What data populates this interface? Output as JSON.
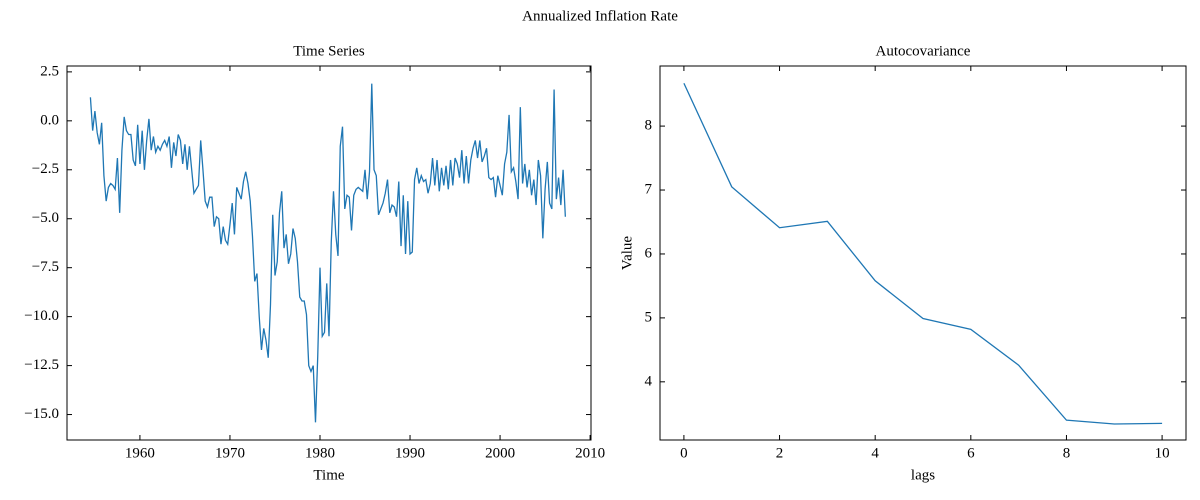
{
  "title": "Annualized Inflation Rate",
  "chart_data": [
    {
      "type": "line",
      "title": "Time Series",
      "xlabel": "Time",
      "color": "#1f77b4",
      "x": [
        1954.5,
        1954.75,
        1955,
        1955.25,
        1955.5,
        1955.75,
        1956,
        1956.25,
        1956.5,
        1956.75,
        1957,
        1957.25,
        1957.5,
        1957.75,
        1958,
        1958.25,
        1958.5,
        1958.75,
        1959,
        1959.25,
        1959.5,
        1959.75,
        1960,
        1960.25,
        1960.5,
        1960.75,
        1961,
        1961.25,
        1961.5,
        1961.75,
        1962,
        1962.25,
        1962.5,
        1962.75,
        1963,
        1963.25,
        1963.5,
        1963.75,
        1964,
        1964.25,
        1964.5,
        1964.75,
        1965,
        1965.25,
        1965.5,
        1965.75,
        1966,
        1966.25,
        1966.5,
        1966.75,
        1967,
        1967.25,
        1967.5,
        1967.75,
        1968,
        1968.25,
        1968.5,
        1968.75,
        1969,
        1969.25,
        1969.5,
        1969.75,
        1970,
        1970.25,
        1970.5,
        1970.75,
        1971,
        1971.25,
        1971.5,
        1971.75,
        1972,
        1972.25,
        1972.5,
        1972.75,
        1973,
        1973.25,
        1973.5,
        1973.75,
        1974,
        1974.25,
        1974.5,
        1974.75,
        1975,
        1975.25,
        1975.5,
        1975.75,
        1976,
        1976.25,
        1976.5,
        1976.75,
        1977,
        1977.25,
        1977.5,
        1977.75,
        1978,
        1978.25,
        1978.5,
        1978.75,
        1979,
        1979.25,
        1979.5,
        1979.75,
        1980,
        1980.25,
        1980.5,
        1980.75,
        1981,
        1981.25,
        1981.5,
        1981.75,
        1982,
        1982.25,
        1982.5,
        1982.75,
        1983,
        1983.25,
        1983.5,
        1983.75,
        1984,
        1984.25,
        1984.5,
        1984.75,
        1985,
        1985.25,
        1985.5,
        1985.75,
        1986,
        1986.25,
        1986.5,
        1986.75,
        1987,
        1987.25,
        1987.5,
        1987.75,
        1988,
        1988.25,
        1988.5,
        1988.75,
        1989,
        1989.25,
        1989.5,
        1989.75,
        1990,
        1990.25,
        1990.5,
        1990.75,
        1991,
        1991.25,
        1991.5,
        1991.75,
        1992,
        1992.25,
        1992.5,
        1992.75,
        1993,
        1993.25,
        1993.5,
        1993.75,
        1994,
        1994.25,
        1994.5,
        1994.75,
        1995,
        1995.25,
        1995.5,
        1995.75,
        1996,
        1996.25,
        1996.5,
        1996.75,
        1997,
        1997.25,
        1997.5,
        1997.75,
        1998,
        1998.25,
        1998.5,
        1998.75,
        1999,
        1999.25,
        1999.5,
        1999.75,
        2000,
        2000.25,
        2000.5,
        2000.75,
        2001,
        2001.25,
        2001.5,
        2001.75,
        2002,
        2002.25,
        2002.5,
        2002.75,
        2003,
        2003.25,
        2003.5,
        2003.75,
        2004,
        2004.25,
        2004.5,
        2004.75,
        2005,
        2005.25,
        2005.5,
        2005.75,
        2006,
        2006.25,
        2006.5,
        2006.75,
        2007,
        2007.25
      ],
      "values": [
        1.2,
        -0.5,
        0.5,
        -0.6,
        -1.2,
        -0.1,
        -2.8,
        -4.1,
        -3.4,
        -3.2,
        -3.3,
        -3.5,
        -1.9,
        -4.7,
        -1.5,
        0.2,
        -0.5,
        -0.7,
        -0.7,
        -2.0,
        -2.3,
        -0.2,
        -2.2,
        -0.5,
        -2.5,
        -1.0,
        0.1,
        -1.5,
        -0.8,
        -1.6,
        -1.3,
        -1.5,
        -1.2,
        -1.0,
        -1.3,
        -0.8,
        -2.4,
        -1.1,
        -1.8,
        -0.7,
        -1.0,
        -2.2,
        -1.2,
        -2.5,
        -1.3,
        -2.5,
        -3.7,
        -3.5,
        -3.3,
        -1.0,
        -2.5,
        -4.1,
        -4.4,
        -3.9,
        -3.9,
        -5.4,
        -4.9,
        -5.0,
        -6.3,
        -5.4,
        -6.1,
        -6.3,
        -5.3,
        -4.2,
        -5.8,
        -3.4,
        -3.7,
        -4.0,
        -3.1,
        -2.6,
        -3.2,
        -4.1,
        -5.9,
        -8.2,
        -7.8,
        -10.0,
        -11.7,
        -10.6,
        -11.2,
        -12.1,
        -9.4,
        -4.8,
        -7.9,
        -7.2,
        -4.7,
        -3.6,
        -6.5,
        -5.8,
        -7.3,
        -6.8,
        -5.5,
        -6.0,
        -7.2,
        -9.0,
        -9.2,
        -9.2,
        -9.9,
        -12.5,
        -12.8,
        -12.5,
        -15.4,
        -12.0,
        -7.5,
        -11.0,
        -10.8,
        -8.3,
        -11.0,
        -6.2,
        -3.6,
        -5.8,
        -6.9,
        -1.3,
        -0.3,
        -4.5,
        -3.8,
        -3.9,
        -5.6,
        -3.8,
        -3.5,
        -3.4,
        -3.5,
        -3.6,
        -2.5,
        -4.0,
        -2.6,
        1.9,
        -2.5,
        -2.8,
        -4.8,
        -4.5,
        -4.2,
        -3.7,
        -3.0,
        -4.7,
        -4.3,
        -4.4,
        -4.9,
        -3.1,
        -6.4,
        -3.8,
        -6.8,
        -4.1,
        -6.8,
        -6.7,
        -3.0,
        -2.4,
        -3.2,
        -2.8,
        -3.1,
        -3.0,
        -3.7,
        -3.2,
        -1.9,
        -3.3,
        -2.0,
        -3.6,
        -2.4,
        -3.3,
        -2.3,
        -3.5,
        -2.0,
        -3.3,
        -1.9,
        -2.2,
        -2.9,
        -1.5,
        -3.2,
        -1.8,
        -3.2,
        -2.0,
        -1.4,
        -1.0,
        -1.9,
        -1.0,
        -2.1,
        -1.8,
        -1.4,
        -2.9,
        -3.0,
        -2.9,
        -3.9,
        -2.8,
        -3.3,
        -3.8,
        -2.2,
        -1.6,
        0.3,
        -2.6,
        -2.4,
        -3.1,
        -4.0,
        0.7,
        -3.2,
        -2.2,
        -3.4,
        -2.5,
        -3.8,
        -3.0,
        -4.3,
        -2.0,
        -2.8,
        -6.0,
        -3.5,
        -2.1,
        -4.2,
        -4.5,
        1.6,
        -4.0,
        -2.9,
        -4.3,
        -2.5,
        -4.9
      ],
      "xlim": [
        1951.9,
        2010.1
      ],
      "ylim": [
        -16.3,
        2.8
      ],
      "xticks": [
        1960,
        1970,
        1980,
        1990,
        2000,
        2010
      ],
      "yticks": [
        2.5,
        {
          "value": 0,
          "label": "0.0"
        },
        {
          "value": -2.5,
          "label": "−2.5"
        },
        {
          "value": -5,
          "label": "−5.0"
        },
        {
          "value": -7.5,
          "label": "−7.5"
        },
        {
          "value": -10,
          "label": "−10.0"
        },
        {
          "value": -12.5,
          "label": "−12.5"
        },
        {
          "value": -15,
          "label": "−15.0"
        }
      ]
    },
    {
      "type": "line",
      "title": "Autocovariance",
      "xlabel": "lags",
      "ylabel": "Value",
      "color": "#1f77b4",
      "x": [
        0,
        1,
        2,
        3,
        4,
        5,
        6,
        7,
        8,
        9,
        10
      ],
      "values": [
        8.67,
        7.05,
        6.41,
        6.51,
        5.58,
        4.99,
        4.82,
        4.26,
        3.4,
        3.34,
        3.35
      ],
      "xlim": [
        -0.5,
        10.5
      ],
      "ylim": [
        3.09,
        8.94
      ],
      "xticks": [
        0,
        2,
        4,
        6,
        8,
        10
      ],
      "yticks": [
        4,
        5,
        6,
        7,
        8
      ]
    }
  ]
}
